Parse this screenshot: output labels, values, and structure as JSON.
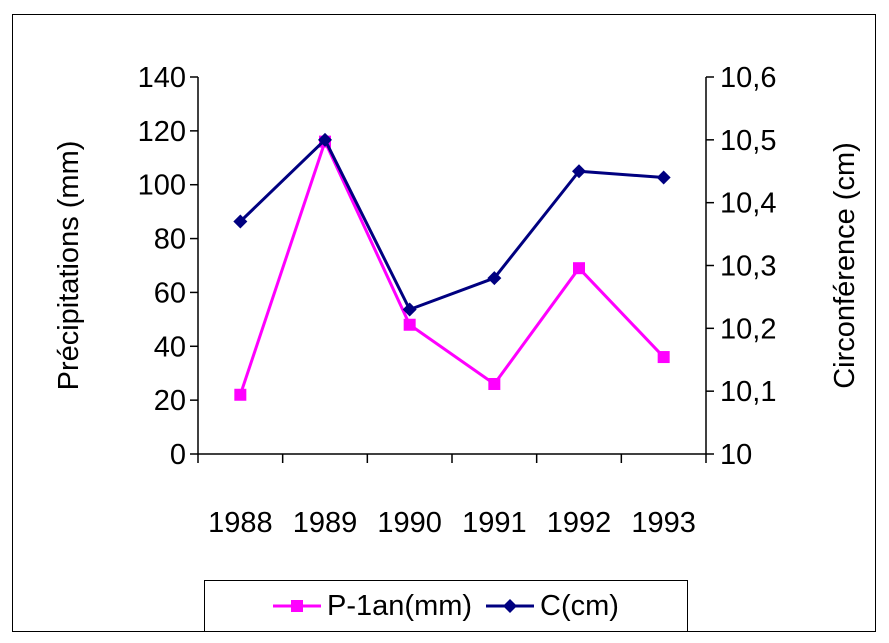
{
  "chart_data": {
    "type": "line",
    "title": "",
    "categories": [
      "1988",
      "1989",
      "1990",
      "1991",
      "1992",
      "1993"
    ],
    "y_left": {
      "label": "Précipitations (mm)",
      "lim": [
        0,
        140
      ],
      "ticks": [
        0,
        20,
        40,
        60,
        80,
        100,
        120,
        140
      ],
      "tick_labels": [
        "0",
        "20",
        "40",
        "60",
        "80",
        "100",
        "120",
        "140"
      ]
    },
    "y_right": {
      "label": "Circonférence (cm)",
      "lim": [
        10,
        10.6
      ],
      "ticks": [
        10,
        10.1,
        10.2,
        10.3,
        10.4,
        10.5,
        10.6
      ],
      "tick_labels": [
        "10",
        "10,1",
        "10,2",
        "10,3",
        "10,4",
        "10,5",
        "10,6"
      ]
    },
    "grid": false,
    "legend_position": "bottom",
    "series": [
      {
        "name": "P-1an(mm)",
        "axis": "left",
        "color": "#ff00ff",
        "marker": "square",
        "values": [
          22,
          116,
          48,
          26,
          69,
          36
        ]
      },
      {
        "name": "C(cm)",
        "axis": "right",
        "color": "#000080",
        "marker": "diamond",
        "values": [
          10.37,
          10.5,
          10.23,
          10.28,
          10.45,
          10.44
        ]
      }
    ]
  }
}
